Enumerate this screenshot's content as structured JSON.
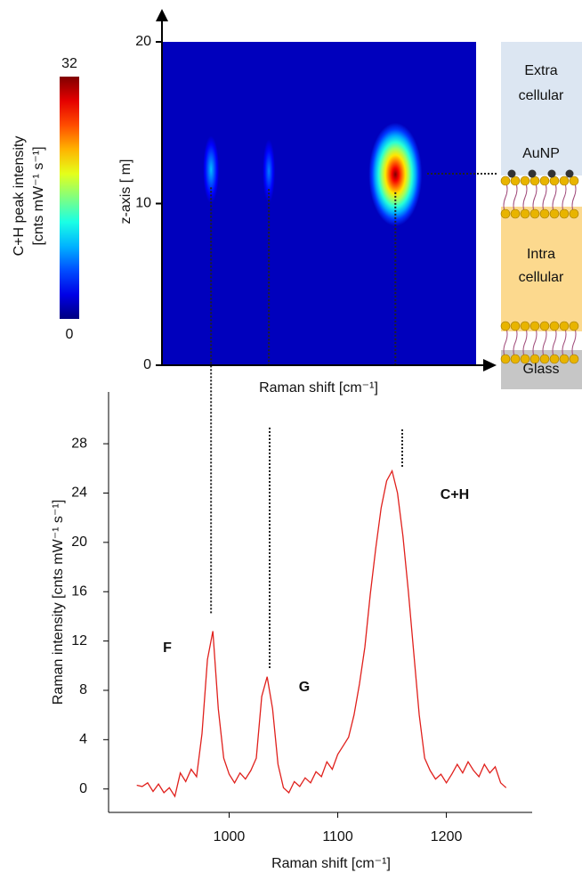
{
  "chart_data": [
    {
      "type": "heatmap",
      "colorbar_label": [
        "C+H peak intensity",
        "[cnts mW⁻¹ s⁻¹]"
      ],
      "zlim": [
        0,
        32
      ],
      "zticks": [
        0,
        32
      ],
      "colormap": "jet",
      "ylabel": "z-axis [ m]",
      "xlabel": "Raman shift [cm⁻¹]",
      "ylim": [
        0,
        20
      ],
      "yticks": [
        0,
        10,
        20
      ],
      "xlim": [
        938,
        1226
      ],
      "spots": [
        {
          "x": 983,
          "z": 12.1,
          "value": 10
        },
        {
          "x": 1036,
          "z": 12,
          "value": 8
        },
        {
          "x": 1152,
          "z": 11.8,
          "value": 32
        }
      ],
      "layer_labels": [
        [
          "Extra",
          "cellular"
        ],
        [
          "AuNP"
        ],
        [
          "Intra",
          "cellular"
        ],
        [
          "Glass"
        ]
      ]
    },
    {
      "type": "line",
      "xlabel": "Raman shift [cm⁻¹]",
      "ylabel": "Raman intensity [cnts mW⁻¹ s⁻¹]",
      "xlim": [
        889,
        1279
      ],
      "xticks": [
        1000,
        1100,
        1200
      ],
      "ylim": [
        -1.9,
        32.2
      ],
      "yticks": [
        0,
        4,
        8,
        12,
        16,
        20,
        24,
        28
      ],
      "color": "#e0201c",
      "x": [
        915,
        920,
        925,
        930,
        935,
        940,
        945,
        950,
        955,
        960,
        965,
        970,
        975,
        980,
        985,
        990,
        995,
        1000,
        1005,
        1010,
        1015,
        1020,
        1025,
        1030,
        1035,
        1040,
        1045,
        1050,
        1055,
        1060,
        1065,
        1070,
        1075,
        1080,
        1085,
        1090,
        1095,
        1100,
        1105,
        1110,
        1115,
        1120,
        1125,
        1130,
        1135,
        1140,
        1145,
        1150,
        1155,
        1160,
        1165,
        1170,
        1175,
        1180,
        1185,
        1190,
        1195,
        1200,
        1205,
        1210,
        1215,
        1220,
        1225,
        1230,
        1235,
        1240,
        1245,
        1250,
        1255
      ],
      "values": [
        0.3,
        0.2,
        0.5,
        -0.2,
        0.4,
        -0.3,
        0.1,
        -0.6,
        1.3,
        0.6,
        1.6,
        1.0,
        4.5,
        10.5,
        12.8,
        6.5,
        2.5,
        1.2,
        0.5,
        1.3,
        0.8,
        1.5,
        2.5,
        7.5,
        9.1,
        6.5,
        2.0,
        0.1,
        -0.3,
        0.6,
        0.2,
        0.9,
        0.5,
        1.4,
        1.0,
        2.2,
        1.6,
        2.8,
        3.5,
        4.2,
        6.0,
        8.5,
        11.5,
        15.8,
        19.5,
        22.8,
        25.0,
        25.8,
        24.0,
        20.5,
        16.0,
        11.0,
        6.0,
        2.5,
        1.5,
        0.8,
        1.2,
        0.5,
        1.2,
        2.0,
        1.3,
        2.2,
        1.5,
        1.0,
        2.0,
        1.3,
        1.8,
        0.5,
        0.1
      ],
      "annotations": [
        "F",
        "G",
        "C+H"
      ]
    }
  ]
}
